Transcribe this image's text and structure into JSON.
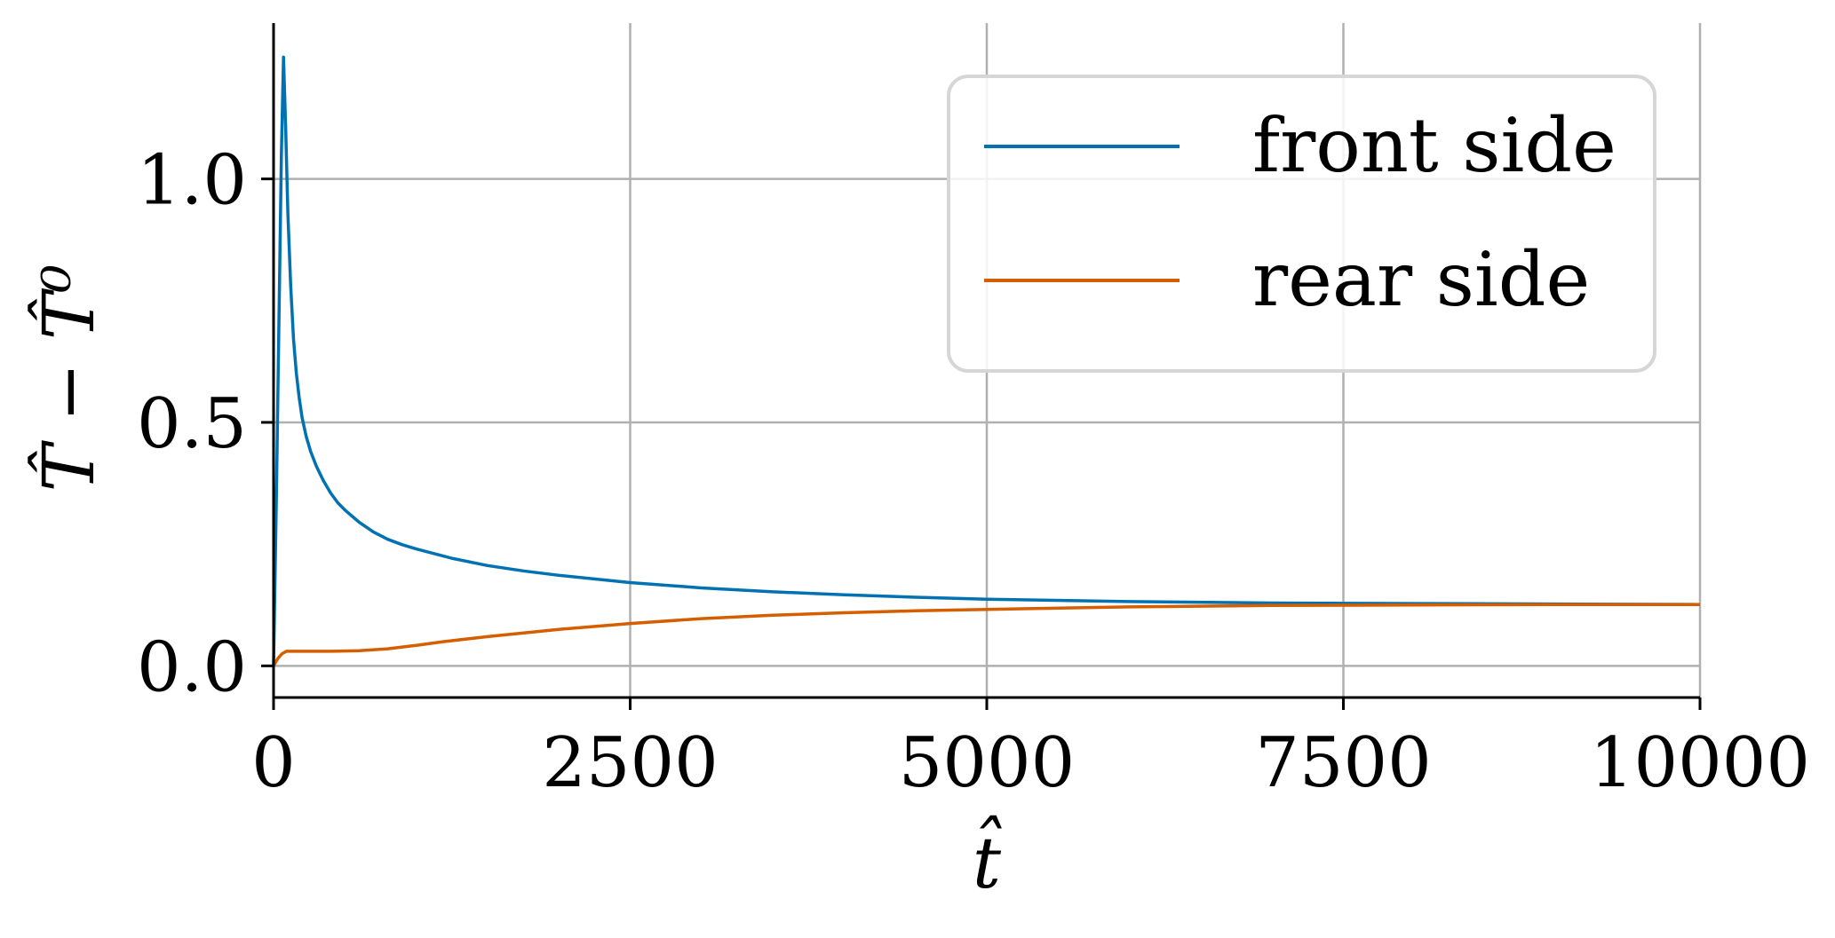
{
  "chart_data": {
    "type": "line",
    "title": "",
    "xlabel": "t̂",
    "ylabel": "T̂ − T̂⁰",
    "xlim": [
      0,
      10000
    ],
    "ylim": [
      -0.065,
      1.32
    ],
    "xticks": [
      0,
      2500,
      5000,
      7500,
      10000
    ],
    "xtick_labels": [
      "0",
      "2500",
      "5000",
      "7500",
      "10000"
    ],
    "yticks": [
      0.0,
      0.5,
      1.0
    ],
    "ytick_labels": [
      "0.0",
      "0.5",
      "1.0"
    ],
    "grid": true,
    "legend_position": "top-right",
    "series": [
      {
        "name": "front side",
        "color": "#0072b2",
        "x": [
          0,
          20,
          40,
          55,
          70,
          85,
          100,
          120,
          140,
          160,
          180,
          200,
          230,
          260,
          300,
          350,
          400,
          450,
          500,
          600,
          700,
          800,
          900,
          1000,
          1250,
          1500,
          1750,
          2000,
          2500,
          3000,
          3500,
          4000,
          4500,
          5000,
          6000,
          7000,
          8000,
          9000,
          10000
        ],
        "y": [
          0.0,
          0.35,
          0.75,
          1.05,
          1.25,
          1.1,
          0.93,
          0.78,
          0.67,
          0.6,
          0.55,
          0.51,
          0.47,
          0.44,
          0.41,
          0.38,
          0.355,
          0.335,
          0.32,
          0.295,
          0.275,
          0.26,
          0.249,
          0.24,
          0.221,
          0.206,
          0.195,
          0.186,
          0.171,
          0.16,
          0.152,
          0.146,
          0.141,
          0.137,
          0.132,
          0.129,
          0.128,
          0.127,
          0.126
        ]
      },
      {
        "name": "rear side",
        "color": "#d55e00",
        "x": [
          0,
          30,
          60,
          90,
          200,
          400,
          600,
          800,
          1000,
          1200,
          1500,
          2000,
          2500,
          3000,
          3500,
          4000,
          4500,
          5000,
          6000,
          7000,
          8000,
          9000,
          10000
        ],
        "y": [
          0.0,
          0.015,
          0.025,
          0.03,
          0.03,
          0.03,
          0.031,
          0.035,
          0.042,
          0.05,
          0.06,
          0.075,
          0.087,
          0.097,
          0.104,
          0.109,
          0.113,
          0.116,
          0.121,
          0.124,
          0.125,
          0.126,
          0.126
        ]
      }
    ]
  }
}
